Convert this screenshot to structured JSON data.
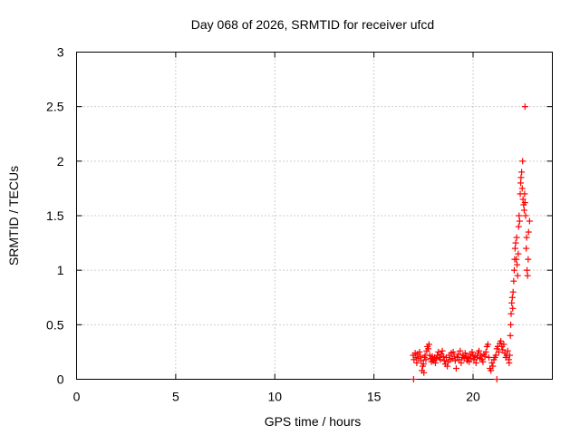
{
  "chart_data": {
    "type": "scatter",
    "title": "Day 068 of 2026, SRMTID for receiver ufcd",
    "xlabel": "GPS time / hours",
    "ylabel": "SRMTID / TECUs",
    "xlim": [
      0,
      24
    ],
    "ylim": [
      0,
      3
    ],
    "x_ticks": [
      0,
      5,
      10,
      15,
      20
    ],
    "x_tick_labels": [
      "0",
      "5",
      "10",
      "15",
      "20"
    ],
    "y_ticks": [
      0,
      0.5,
      1,
      1.5,
      2,
      2.5,
      3
    ],
    "y_tick_labels": [
      "0",
      "0.5",
      "1",
      "1.5",
      "2",
      "2.5",
      "3"
    ],
    "grid": true,
    "legend": "none",
    "marker": "plus",
    "color": "#ff0000",
    "series": [
      {
        "name": "SRMTID",
        "x": [
          16.98,
          17.02,
          17.08,
          17.12,
          17.16,
          17.2,
          17.25,
          17.3,
          17.34,
          17.38,
          17.42,
          17.46,
          17.5,
          17.52,
          17.55,
          17.58,
          17.62,
          17.66,
          17.7,
          17.74,
          17.78,
          17.82,
          17.86,
          17.9,
          17.94,
          17.98,
          18.02,
          18.06,
          18.1,
          18.15,
          18.2,
          18.25,
          18.3,
          18.35,
          18.4,
          18.45,
          18.5,
          18.55,
          18.6,
          18.65,
          18.7,
          18.75,
          18.8,
          18.85,
          18.9,
          18.95,
          19.0,
          19.05,
          19.1,
          19.15,
          19.2,
          19.25,
          19.3,
          19.35,
          19.4,
          19.45,
          19.5,
          19.55,
          19.6,
          19.65,
          19.7,
          19.75,
          19.8,
          19.85,
          19.9,
          19.95,
          20.0,
          20.05,
          20.1,
          20.15,
          20.2,
          20.25,
          20.3,
          20.35,
          20.4,
          20.45,
          20.5,
          20.55,
          20.6,
          20.65,
          20.7,
          20.75,
          20.8,
          20.85,
          20.9,
          20.95,
          21.0,
          21.05,
          21.1,
          21.15,
          21.2,
          21.25,
          21.3,
          21.35,
          21.4,
          21.45,
          21.5,
          21.55,
          21.6,
          21.65,
          21.7,
          21.75,
          21.8,
          21.82,
          21.85,
          21.88,
          21.9,
          21.92,
          21.95,
          21.98,
          22.0,
          22.02,
          22.05,
          22.08,
          22.1,
          22.12,
          22.15,
          22.18,
          22.2,
          22.22,
          22.25,
          22.28,
          22.3,
          22.32,
          22.35,
          22.38,
          22.4,
          22.42,
          22.45,
          22.48,
          22.5,
          22.52,
          22.55,
          22.58,
          22.6,
          22.62,
          22.65,
          22.68,
          22.7,
          22.72,
          22.75,
          22.78,
          22.8,
          22.85
        ],
        "y": [
          0.22,
          0.18,
          0.24,
          0.2,
          0.15,
          0.23,
          0.19,
          0.25,
          0.21,
          0.17,
          0.08,
          0.12,
          0.14,
          0.06,
          0.2,
          0.22,
          0.18,
          0.26,
          0.3,
          0.28,
          0.32,
          0.22,
          0.19,
          0.16,
          0.21,
          0.18,
          0.17,
          0.2,
          0.15,
          0.19,
          0.22,
          0.25,
          0.2,
          0.18,
          0.23,
          0.26,
          0.21,
          0.17,
          0.14,
          0.2,
          0.12,
          0.16,
          0.22,
          0.18,
          0.24,
          0.19,
          0.25,
          0.21,
          0.17,
          0.1,
          0.2,
          0.23,
          0.18,
          0.26,
          0.15,
          0.2,
          0.22,
          0.19,
          0.24,
          0.21,
          0.17,
          0.2,
          0.16,
          0.23,
          0.19,
          0.25,
          0.22,
          0.18,
          0.21,
          0.15,
          0.2,
          0.24,
          0.26,
          0.19,
          0.22,
          0.18,
          0.16,
          0.23,
          0.21,
          0.25,
          0.3,
          0.32,
          0.2,
          0.1,
          0.08,
          0.15,
          0.12,
          0.18,
          0.2,
          0.22,
          0.28,
          0.3,
          0.25,
          0.33,
          0.35,
          0.3,
          0.27,
          0.32,
          0.24,
          0.2,
          0.22,
          0.26,
          0.18,
          0.15,
          0.22,
          0.4,
          0.5,
          0.6,
          0.7,
          0.75,
          0.65,
          0.8,
          0.9,
          1.0,
          1.1,
          1.2,
          1.25,
          1.1,
          1.3,
          1.05,
          0.95,
          1.15,
          1.4,
          1.5,
          1.45,
          1.7,
          1.8,
          1.85,
          1.9,
          1.75,
          2.0,
          1.65,
          1.6,
          1.55,
          1.7,
          1.62,
          1.5,
          1.2,
          1.3,
          1.0,
          0.95,
          1.1,
          1.35,
          1.45
        ],
        "outliers": [
          {
            "x": 22.62,
            "y": 2.5
          },
          {
            "x": 17.0,
            "y": 0.0
          },
          {
            "x": 21.2,
            "y": 0.0
          }
        ]
      }
    ]
  }
}
